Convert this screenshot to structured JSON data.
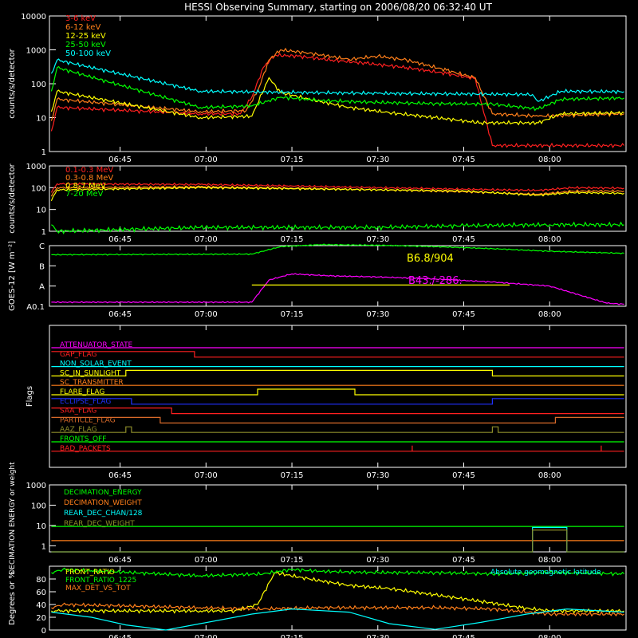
{
  "title": "HESSI Observing Summary, starting on 2006/08/20 06:32:40 UT",
  "colors": {
    "background": "#000000",
    "axis": "#ffffff",
    "red": "#ff2020",
    "orange": "#ff7f1a",
    "yellow": "#ffff00",
    "green": "#00ff00",
    "cyan": "#00ffff",
    "magenta": "#ff00ff",
    "blue": "#2030ff",
    "olive": "#8c8c2a",
    "darkorange": "#d86a2a"
  },
  "x_ticks": [
    "06:45",
    "07:00",
    "07:15",
    "07:30",
    "07:45",
    "08:00"
  ],
  "chart_data": [
    {
      "type": "line",
      "panel": "lo-energy",
      "xlim": [
        "06:32:40",
        "08:13:20"
      ],
      "ylabel": "counts/s/detector",
      "yscale": "log",
      "ylim": [
        1,
        10000
      ],
      "y_ticks": [
        "1",
        "10",
        "100",
        "1000",
        "10000"
      ],
      "legend": [
        "3-6 keV",
        "6-12 keV",
        "12-25 keV",
        "25-50 keV",
        "50-100 keV"
      ],
      "legend_colors": [
        "#ff2020",
        "#ff7f1a",
        "#ffff00",
        "#00ff00",
        "#00ffff"
      ],
      "series": [
        {
          "name": "3-6 keV",
          "color": "#ff2020",
          "x": [
            "06:33",
            "06:34",
            "06:59",
            "07:06",
            "07:08",
            "07:10",
            "07:12",
            "07:16",
            "07:22",
            "07:28",
            "07:35",
            "07:42",
            "07:47",
            "07:50",
            "08:13"
          ],
          "y": [
            4,
            20,
            13,
            13,
            40,
            300,
            700,
            650,
            500,
            400,
            300,
            200,
            140,
            1.5,
            1.5
          ]
        },
        {
          "name": "6-12 keV",
          "color": "#ff7f1a",
          "x": [
            "06:33",
            "06:34",
            "06:59",
            "07:07",
            "07:09",
            "07:11",
            "07:13",
            "07:18",
            "07:25",
            "07:30",
            "07:35",
            "07:42",
            "07:47",
            "07:50",
            "07:58",
            "08:13"
          ],
          "y": [
            8,
            35,
            15,
            16,
            60,
            500,
            1000,
            800,
            520,
            650,
            500,
            250,
            150,
            13,
            11,
            13
          ]
        },
        {
          "name": "12-25 keV",
          "color": "#ffff00",
          "x": [
            "06:33",
            "06:34",
            "06:59",
            "07:08",
            "07:11",
            "07:13",
            "07:18",
            "07:25",
            "07:32",
            "07:40",
            "07:48",
            "07:58",
            "08:02",
            "08:13"
          ],
          "y": [
            15,
            60,
            10,
            11,
            150,
            55,
            35,
            20,
            14,
            10,
            7,
            7,
            13,
            14
          ]
        },
        {
          "name": "25-50 keV",
          "color": "#00ff00",
          "x": [
            "06:33",
            "06:34",
            "06:59",
            "07:08",
            "07:13",
            "07:20",
            "07:30",
            "07:40",
            "07:50",
            "07:58",
            "08:02",
            "08:13"
          ],
          "y": [
            60,
            300,
            20,
            22,
            40,
            32,
            28,
            26,
            25,
            18,
            35,
            38
          ]
        },
        {
          "name": "50-100 keV",
          "color": "#00ffff",
          "x": [
            "06:33",
            "06:34",
            "06:59",
            "07:30",
            "07:57",
            "07:58",
            "08:02",
            "08:13"
          ],
          "y": [
            200,
            500,
            60,
            52,
            48,
            30,
            60,
            58
          ]
        }
      ]
    },
    {
      "type": "line",
      "panel": "hi-energy",
      "xlim": [
        "06:32:40",
        "08:13:20"
      ],
      "ylabel": "counts/s/detector",
      "yscale": "log",
      "ylim": [
        1,
        1000
      ],
      "y_ticks": [
        "1",
        "10",
        "100",
        "1000"
      ],
      "legend": [
        "0.1-0.3 MeV",
        "0.3-0.8 MeV",
        "0.8-7 MeV",
        "7-20 MeV"
      ],
      "legend_colors": [
        "#ff2020",
        "#ff7f1a",
        "#ffff00",
        "#00ff00"
      ],
      "series": [
        {
          "name": "0.1-0.3 MeV",
          "color": "#ff2020",
          "x": [
            "06:33",
            "06:34",
            "06:59",
            "07:15",
            "07:30",
            "07:45",
            "07:58",
            "08:04",
            "08:13"
          ],
          "y": [
            60,
            150,
            140,
            120,
            100,
            85,
            75,
            100,
            95
          ]
        },
        {
          "name": "0.3-0.8 MeV",
          "color": "#ff7f1a",
          "x": [
            "06:33",
            "06:34",
            "06:59",
            "07:15",
            "07:30",
            "07:45",
            "07:58",
            "08:04",
            "08:13"
          ],
          "y": [
            40,
            100,
            110,
            95,
            80,
            65,
            50,
            70,
            70
          ]
        },
        {
          "name": "0.8-7 MeV",
          "color": "#ffff00",
          "x": [
            "06:33",
            "06:34",
            "06:59",
            "07:15",
            "07:30",
            "07:45",
            "07:58",
            "08:04",
            "08:13"
          ],
          "y": [
            25,
            80,
            100,
            90,
            80,
            70,
            45,
            60,
            55
          ]
        },
        {
          "name": "7-20 MeV",
          "color": "#00ff00",
          "x": [
            "06:33",
            "06:34",
            "06:59",
            "07:15",
            "07:30",
            "07:45",
            "08:00",
            "08:13"
          ],
          "y": [
            2,
            1,
            1.5,
            1.5,
            1.5,
            1.8,
            2,
            2
          ]
        }
      ]
    },
    {
      "type": "line",
      "panel": "goes",
      "xlim": [
        "06:32:40",
        "08:13:20"
      ],
      "ylabel": "GOES-12 [W m⁻²]",
      "y_ticks": [
        "A0.1",
        "A",
        "B",
        "C"
      ],
      "annotations": [
        "B6.8/904",
        "B43./-286."
      ],
      "series": [
        {
          "name": "",
          "color": "#00ff00",
          "x": [
            "06:33",
            "07:08",
            "07:13",
            "07:20",
            "07:30",
            "07:40",
            "07:50",
            "08:00",
            "08:13"
          ],
          "y": [
            2.55,
            2.58,
            2.95,
            3.05,
            3.02,
            2.95,
            2.85,
            2.72,
            2.62
          ]
        },
        {
          "name": "",
          "color": "#ff00ff",
          "x": [
            "06:33",
            "07:08",
            "07:11",
            "07:15",
            "07:22",
            "07:30",
            "07:40",
            "07:50",
            "08:00",
            "08:10",
            "08:13"
          ],
          "y": [
            0.2,
            0.2,
            1.3,
            1.6,
            1.5,
            1.45,
            1.35,
            1.2,
            1.0,
            0.15,
            0.1
          ]
        },
        {
          "name": "",
          "color": "#ffff00",
          "x": [
            "07:08",
            "07:53"
          ],
          "y": [
            1.05,
            1.05
          ]
        }
      ]
    },
    {
      "type": "line",
      "panel": "flags",
      "ylabel": "Flags",
      "flags": [
        {
          "name": "ATTENUATOR_STATE",
          "color": "#ff00ff",
          "x": [
            "06:33",
            "08:13"
          ],
          "y": [
            0,
            0
          ]
        },
        {
          "name": "GAP_FLAG",
          "color": "#ff2020",
          "x": [
            "06:33",
            "06:58",
            "06:58",
            "08:13"
          ],
          "y": [
            1,
            1,
            0,
            0
          ]
        },
        {
          "name": "NON_SOLAR_EVENT",
          "color": "#00ffff",
          "x": [
            "06:33",
            "08:13"
          ],
          "y": [
            0,
            0
          ]
        },
        {
          "name": "SC_IN_SUNLIGHT",
          "color": "#ffff00",
          "x": [
            "06:33",
            "06:46",
            "06:46",
            "07:50",
            "07:50",
            "08:13"
          ],
          "y": [
            0,
            0,
            1,
            1,
            0,
            0
          ]
        },
        {
          "name": "SC_TRANSMITTER",
          "color": "#ff7f1a",
          "x": [
            "06:33",
            "08:13"
          ],
          "y": [
            0,
            0
          ]
        },
        {
          "name": "FLARE_FLAG",
          "color": "#ffff00",
          "x": [
            "06:33",
            "07:09",
            "07:09",
            "07:26",
            "07:26",
            "08:13"
          ],
          "y": [
            0,
            0,
            1,
            1,
            0,
            0
          ]
        },
        {
          "name": "ECLIPSE_FLAG",
          "color": "#2030ff",
          "x": [
            "06:33",
            "06:47",
            "06:47",
            "07:50",
            "07:50",
            "08:13"
          ],
          "y": [
            1,
            1,
            0,
            0,
            1,
            1
          ]
        },
        {
          "name": "SAA_FLAG",
          "color": "#ff2020",
          "x": [
            "06:33",
            "06:54",
            "06:54",
            "08:13"
          ],
          "y": [
            1,
            1,
            0,
            0
          ]
        },
        {
          "name": "PARTICLE_FLAG",
          "color": "#d86a2a",
          "x": [
            "06:33",
            "06:52",
            "06:52",
            "08:01",
            "08:01",
            "08:13"
          ],
          "y": [
            1,
            1,
            0,
            0,
            1,
            1
          ]
        },
        {
          "name": "AAZ_FLAG",
          "color": "#8c8c2a",
          "x": [
            "06:33",
            "06:46",
            "06:46",
            "06:47",
            "06:47",
            "07:50",
            "07:50",
            "07:51",
            "07:51",
            "08:13"
          ],
          "y": [
            0,
            0,
            1,
            1,
            0,
            0,
            1,
            1,
            0,
            0
          ]
        },
        {
          "name": "FRONTS_OFF",
          "color": "#00ff00",
          "x": [
            "06:33",
            "08:13"
          ],
          "y": [
            0,
            0
          ]
        },
        {
          "name": "BAD_PACKETS",
          "color": "#ff2020",
          "x": [
            "06:33",
            "07:36",
            "07:36",
            "07:36",
            "07:36",
            "08:09",
            "08:09",
            "08:09",
            "08:09",
            "08:13"
          ],
          "y": [
            0,
            0,
            1,
            1,
            0,
            0,
            1,
            1,
            0,
            0
          ]
        }
      ]
    },
    {
      "type": "line",
      "panel": "decimation",
      "ylabel": "DECIMATION ENERGY or weight",
      "yscale": "log",
      "ylim": [
        0.5,
        1000
      ],
      "y_ticks": [
        "1",
        "10",
        "100",
        "1000"
      ],
      "legend": [
        "DECIMATION_ENERGY",
        "DECIMATION_WEIGHT",
        "REAR_DEC_CHAN/128",
        "REAR_DEC_WEIGHT"
      ],
      "legend_colors": [
        "#00ff00",
        "#ff7f1a",
        "#00ffff",
        "#8c8c2a"
      ],
      "series": [
        {
          "name": "DECIMATION_ENERGY",
          "color": "#00ff00",
          "x": [
            "06:33",
            "08:13"
          ],
          "y": [
            9,
            9
          ]
        },
        {
          "name": "DECIMATION_WEIGHT",
          "color": "#ff7f1a",
          "x": [
            "06:33",
            "08:13"
          ],
          "y": [
            1.8,
            1.8
          ]
        },
        {
          "name": "REAR_DEC_CHAN/128",
          "color": "#00ffff",
          "x": [
            "06:33",
            "07:57",
            "07:57",
            "08:03",
            "08:03",
            "08:13"
          ],
          "y": [
            0.5,
            0.5,
            8,
            8,
            0.5,
            0.5
          ]
        },
        {
          "name": "REAR_DEC_WEIGHT",
          "color": "#8c8c2a",
          "x": [
            "06:33",
            "07:57",
            "07:57",
            "08:03",
            "08:03",
            "08:13"
          ],
          "y": [
            0.5,
            0.5,
            6,
            6,
            0.5,
            0.5
          ]
        }
      ]
    },
    {
      "type": "line",
      "panel": "ratios",
      "ylabel": "Degrees or %",
      "ylim": [
        0,
        100
      ],
      "y_ticks": [
        "0",
        "20",
        "40",
        "60",
        "80"
      ],
      "legend": [
        "FRONT_RATIO",
        "FRONT_RATIO_1225",
        "MAX_DET_VS_TOT"
      ],
      "legend_colors": [
        "#ffff00",
        "#00ff00",
        "#ff7f1a"
      ],
      "annotations": [
        "Absolute geomagnetic latitude"
      ],
      "series": [
        {
          "name": "FRONT_RATIO",
          "color": "#ffff00",
          "x": [
            "06:33",
            "06:34",
            "06:59",
            "07:05",
            "07:09",
            "07:12",
            "07:18",
            "07:25",
            "07:32",
            "07:40",
            "07:48",
            "07:55",
            "08:00",
            "08:13"
          ],
          "y": [
            30,
            30,
            30,
            30,
            40,
            90,
            80,
            70,
            65,
            55,
            45,
            35,
            30,
            30
          ]
        },
        {
          "name": "FRONT_RATIO_1225",
          "color": "#00ff00",
          "x": [
            "06:33",
            "06:35",
            "06:59",
            "07:10",
            "07:15",
            "07:20",
            "07:30",
            "07:40",
            "07:50",
            "08:00",
            "08:13"
          ],
          "y": [
            90,
            95,
            85,
            88,
            95,
            92,
            90,
            90,
            88,
            90,
            88
          ]
        },
        {
          "name": "MAX_DET_VS_TOT",
          "color": "#ff7f1a",
          "x": [
            "06:33",
            "06:35",
            "06:59",
            "07:10",
            "07:20",
            "07:30",
            "07:40",
            "07:50",
            "08:00",
            "08:13"
          ],
          "y": [
            35,
            40,
            35,
            33,
            35,
            35,
            35,
            33,
            25,
            25
          ]
        },
        {
          "name": "Absolute geomagnetic latitude",
          "color": "#00ffff",
          "x": [
            "06:33",
            "06:40",
            "06:46",
            "06:53",
            "06:59",
            "07:08",
            "07:15",
            "07:25",
            "07:32",
            "07:40",
            "07:48",
            "07:56",
            "08:03",
            "08:13"
          ],
          "y": [
            28,
            20,
            8,
            0,
            10,
            25,
            33,
            28,
            10,
            1,
            12,
            25,
            33,
            28
          ]
        }
      ]
    }
  ]
}
